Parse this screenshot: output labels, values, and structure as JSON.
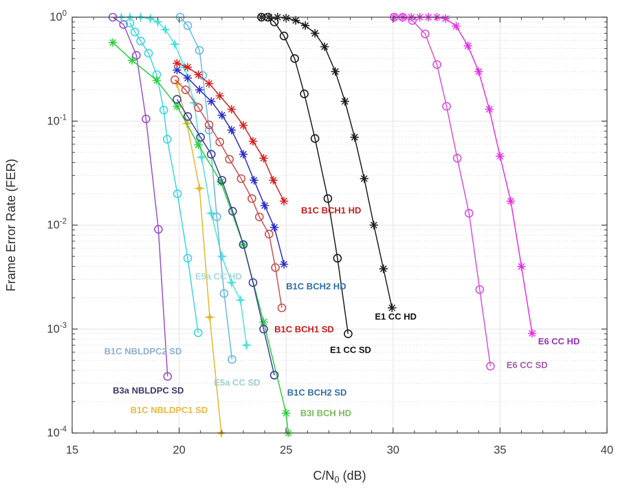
{
  "chart_data": {
    "type": "line",
    "title": "",
    "xlabel": {
      "pre": "C/N",
      "sub": "0",
      "post": " (dB)"
    },
    "ylabel": "Frame Error Rate (FER)",
    "xlim": [
      15,
      40
    ],
    "ylim_exponents": [
      -4,
      0
    ],
    "xticks": [
      15,
      20,
      25,
      30,
      35,
      40
    ],
    "ytick_exponents": [
      0,
      -1,
      -2,
      -3,
      -4
    ],
    "grid": {
      "major_on": true,
      "minor_on": true,
      "major_color": "#e3e3e3",
      "minor_color": "#cccccc"
    },
    "frame_color": "#3f3f3f",
    "tick_label_color": "#3c3c3c",
    "series": [
      {
        "id": "b1c-nbldpc1-sd",
        "label": "B1C NBLDPC1 SD",
        "color": "#e7b62a",
        "label_color": "#e6ba45",
        "marker": "star4",
        "label_x": 17.72,
        "label_y": 0.000155,
        "x": [
          19.9,
          20.37,
          20.95,
          21.43,
          21.97
        ],
        "fer": [
          0.23,
          0.095,
          0.0225,
          0.0013,
          0.0001
        ]
      },
      {
        "id": "b3a-nbldpc-sd",
        "label": "B3a NBLDPC SD",
        "color": "#9a4fc9",
        "label_color": "#403566",
        "marker": "circle",
        "label_x": 16.9,
        "label_y": 0.00024,
        "x": [
          16.9,
          17.4,
          18.0,
          18.45,
          19.03,
          19.46
        ],
        "fer": [
          1.0,
          0.85,
          0.43,
          0.105,
          0.0091,
          0.00035
        ]
      },
      {
        "id": "b1c-nbldpc2-sd",
        "label": "B1C NBLDPC2 SD",
        "color": "#38d6e2",
        "label_color": "#8fafd0",
        "marker": "circle",
        "label_x": 16.5,
        "label_y": 0.00057,
        "x": [
          17.7,
          17.93,
          18.2,
          18.57,
          18.95,
          19.28,
          19.44,
          19.92,
          20.4,
          20.89
        ],
        "fer": [
          0.88,
          0.72,
          0.59,
          0.45,
          0.28,
          0.128,
          0.067,
          0.02,
          0.0048,
          0.00092
        ]
      },
      {
        "id": "e5a-cc-hd",
        "label": "E5a CC HD",
        "color": "#4fe0da",
        "label_color": "#a8d6da",
        "marker": "star4",
        "label_x": 20.75,
        "label_y": 0.003,
        "x": [
          17.3,
          17.7,
          18.2,
          18.65,
          19.0,
          19.35,
          19.8,
          20.25,
          20.7,
          21.05,
          21.5,
          22.0,
          22.45,
          22.87,
          23.15
        ],
        "fer": [
          1,
          1,
          1,
          0.97,
          0.9,
          0.76,
          0.55,
          0.33,
          0.15,
          0.045,
          0.013,
          0.005,
          0.0028,
          0.0019,
          0.0007
        ]
      },
      {
        "id": "e5a-cc-sd",
        "label": "E5a CC SD",
        "color": "#66b8e6",
        "label_color": "#9fcfd6",
        "marker": "circle",
        "label_x": 21.63,
        "label_y": 0.000285,
        "x": [
          20.05,
          20.4,
          20.95,
          21.1,
          21.4,
          21.76,
          22.1,
          22.47
        ],
        "fer": [
          1,
          0.83,
          0.48,
          0.275,
          0.082,
          0.012,
          0.0022,
          0.00051
        ]
      },
      {
        "id": "b3i-bch-hd",
        "label": "B3I BCH HD",
        "color": "#27cf3a",
        "label_color": "#7aba5c",
        "marker": "asterisk",
        "label_x": 25.66,
        "label_y": 0.000145,
        "x": [
          16.9,
          17.8,
          18.95,
          19.9,
          20.9,
          21.95,
          23.0,
          23.95,
          25.0,
          25.1
        ],
        "fer": [
          0.57,
          0.385,
          0.247,
          0.139,
          0.059,
          0.026,
          0.0065,
          0.00117,
          0.000155,
          0.0001
        ]
      },
      {
        "id": "b1c-bch2-sd",
        "label": "B1C BCH2 SD",
        "color": "#3a4099",
        "label_color": "#2e6fa8",
        "marker": "circle",
        "label_x": 25.05,
        "label_y": 0.00023,
        "x": [
          19.9,
          20.4,
          21.0,
          21.5,
          22.0,
          22.5,
          23.0,
          23.45,
          23.95,
          24.45
        ],
        "fer": [
          0.162,
          0.111,
          0.07,
          0.048,
          0.027,
          0.0136,
          0.0065,
          0.0028,
          0.001,
          0.00036
        ]
      },
      {
        "id": "b1c-bch1-sd",
        "label": "B1C BCH1 SD",
        "color": "#c94f4f",
        "label_color": "#c41b1b",
        "marker": "circle",
        "label_x": 24.45,
        "label_y": 0.00093,
        "x": [
          19.8,
          20.3,
          20.9,
          21.4,
          21.9,
          22.35,
          22.9,
          23.4,
          23.75,
          24.2,
          24.5,
          24.8
        ],
        "fer": [
          0.25,
          0.2,
          0.135,
          0.092,
          0.063,
          0.043,
          0.028,
          0.018,
          0.012,
          0.0082,
          0.0039,
          0.0016
        ]
      },
      {
        "id": "b1c-bch2-hd",
        "label": "B1C BCH2 HD",
        "color": "#2a2acc",
        "label_color": "#2e6fa8",
        "marker": "asterisk",
        "label_x": 25.0,
        "label_y": 0.0024,
        "x": [
          19.9,
          20.4,
          20.95,
          21.5,
          22.0,
          22.45,
          23.0,
          23.5,
          24.0,
          24.45,
          24.9
        ],
        "fer": [
          0.31,
          0.26,
          0.2,
          0.155,
          0.114,
          0.082,
          0.048,
          0.027,
          0.0154,
          0.0095,
          0.0042
        ]
      },
      {
        "id": "b1c-bch1-hd",
        "label": "B1C BCH1 HD",
        "color": "#d42020",
        "label_color": "#c41b1b",
        "marker": "asterisk",
        "label_x": 25.7,
        "label_y": 0.013,
        "x": [
          19.9,
          20.4,
          20.9,
          21.4,
          21.9,
          22.45,
          23.0,
          23.45,
          23.95,
          24.4,
          24.9
        ],
        "fer": [
          0.36,
          0.33,
          0.28,
          0.23,
          0.175,
          0.13,
          0.091,
          0.064,
          0.044,
          0.027,
          0.017
        ]
      },
      {
        "id": "e1-cc-sd",
        "label": "E1 CC SD",
        "color": "#1a1a1a",
        "label_color": "#111111",
        "marker": "circle",
        "label_x": 27.05,
        "label_y": 0.00059,
        "x": [
          23.85,
          24.15,
          24.45,
          24.9,
          25.4,
          25.85,
          26.35,
          26.95,
          27.4,
          27.9
        ],
        "fer": [
          1,
          1,
          0.9,
          0.66,
          0.4,
          0.183,
          0.068,
          0.018,
          0.0048,
          0.0009
        ]
      },
      {
        "id": "e1-cc-hd",
        "label": "E1 CC HD",
        "color": "#1a1a1a",
        "label_color": "#111111",
        "marker": "asterisk",
        "label_x": 29.15,
        "label_y": 0.00123,
        "x": [
          23.85,
          24.2,
          24.6,
          25.0,
          25.45,
          25.9,
          26.35,
          26.8,
          27.3,
          27.75,
          28.2,
          28.65,
          29.1,
          29.55,
          29.95
        ],
        "fer": [
          1,
          1,
          1,
          0.98,
          0.93,
          0.83,
          0.7,
          0.52,
          0.3,
          0.155,
          0.07,
          0.028,
          0.01,
          0.0038,
          0.0016
        ]
      },
      {
        "id": "e6-cc-sd",
        "label": "E6 CC SD",
        "color": "#d94fd9",
        "label_color": "#a35ca3",
        "marker": "circle",
        "label_x": 35.3,
        "label_y": 0.00042,
        "x": [
          30.05,
          30.45,
          30.9,
          31.5,
          32.05,
          32.5,
          33.0,
          33.55,
          34.05,
          34.55
        ],
        "fer": [
          1,
          1,
          0.93,
          0.69,
          0.35,
          0.139,
          0.044,
          0.013,
          0.0024,
          0.00044
        ]
      },
      {
        "id": "e6-cc-hd",
        "label": "E6 CC HD",
        "color": "#e52ee5",
        "label_color": "#9232b8",
        "marker": "asterisk",
        "label_x": 36.78,
        "label_y": 0.00071,
        "x": [
          30.05,
          30.45,
          30.85,
          31.25,
          31.65,
          32.05,
          32.45,
          32.95,
          33.5,
          34.0,
          34.5,
          35.0,
          35.5,
          36.0,
          36.5
        ],
        "fer": [
          1,
          1,
          1,
          1,
          1,
          1,
          0.97,
          0.82,
          0.53,
          0.3,
          0.13,
          0.046,
          0.017,
          0.004,
          0.00091
        ]
      }
    ]
  }
}
